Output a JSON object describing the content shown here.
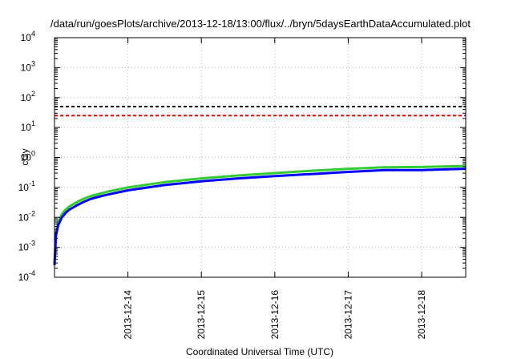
{
  "chart_data": {
    "type": "line",
    "title": "/data/run/goesPlots/archive/2013-12-18/13:00/flux/../bryn/5daysEarthDataAccumulated.plot",
    "xlabel": "Coordinated Universal Time (UTC)",
    "ylabel": "cGy",
    "yscale": "log",
    "ylim": [
      0.0001,
      10000
    ],
    "xlim": [
      0,
      5.6
    ],
    "x_ticks": [
      {
        "label": "2013-12-14",
        "value": 1.0
      },
      {
        "label": "2013-12-15",
        "value": 2.0
      },
      {
        "label": "2013-12-16",
        "value": 3.0
      },
      {
        "label": "2013-12-17",
        "value": 4.0
      },
      {
        "label": "2013-12-18",
        "value": 5.0
      }
    ],
    "y_ticks": [
      {
        "base": "10",
        "exp": "-4",
        "value": 0.0001
      },
      {
        "base": "10",
        "exp": "-3",
        "value": 0.001
      },
      {
        "base": "10",
        "exp": "-2",
        "value": 0.01
      },
      {
        "base": "10",
        "exp": "-1",
        "value": 0.1
      },
      {
        "base": "10",
        "exp": "0",
        "value": 1
      },
      {
        "base": "10",
        "exp": "1",
        "value": 10
      },
      {
        "base": "10",
        "exp": "2",
        "value": 100
      },
      {
        "base": "10",
        "exp": "3",
        "value": 1000
      },
      {
        "base": "10",
        "exp": "4",
        "value": 10000
      }
    ],
    "grid": true,
    "thresholds": [
      {
        "value": 50,
        "color": "#000000",
        "dash": true
      },
      {
        "value": 25,
        "color": "#ff0000",
        "dash": true
      }
    ],
    "series": [
      {
        "color": "#33cc33",
        "x": [
          0.0,
          0.02,
          0.05,
          0.1,
          0.15,
          0.2,
          0.3,
          0.4,
          0.5,
          0.7,
          1.0,
          1.5,
          2.0,
          2.5,
          3.0,
          3.5,
          4.0,
          4.5,
          5.0,
          5.3,
          5.6
        ],
        "y": [
          0.0003,
          0.003,
          0.007,
          0.013,
          0.018,
          0.023,
          0.032,
          0.042,
          0.052,
          0.07,
          0.1,
          0.15,
          0.2,
          0.25,
          0.3,
          0.36,
          0.42,
          0.47,
          0.48,
          0.5,
          0.52
        ]
      },
      {
        "color": "#0000ff",
        "x": [
          0.0,
          0.02,
          0.05,
          0.1,
          0.15,
          0.2,
          0.3,
          0.4,
          0.5,
          0.7,
          1.0,
          1.5,
          2.0,
          2.5,
          3.0,
          3.5,
          4.0,
          4.5,
          5.0,
          5.3,
          5.6
        ],
        "y": [
          0.00025,
          0.0025,
          0.0055,
          0.01,
          0.014,
          0.018,
          0.025,
          0.033,
          0.042,
          0.056,
          0.08,
          0.12,
          0.16,
          0.2,
          0.24,
          0.28,
          0.33,
          0.38,
          0.38,
          0.4,
          0.42
        ]
      }
    ]
  }
}
